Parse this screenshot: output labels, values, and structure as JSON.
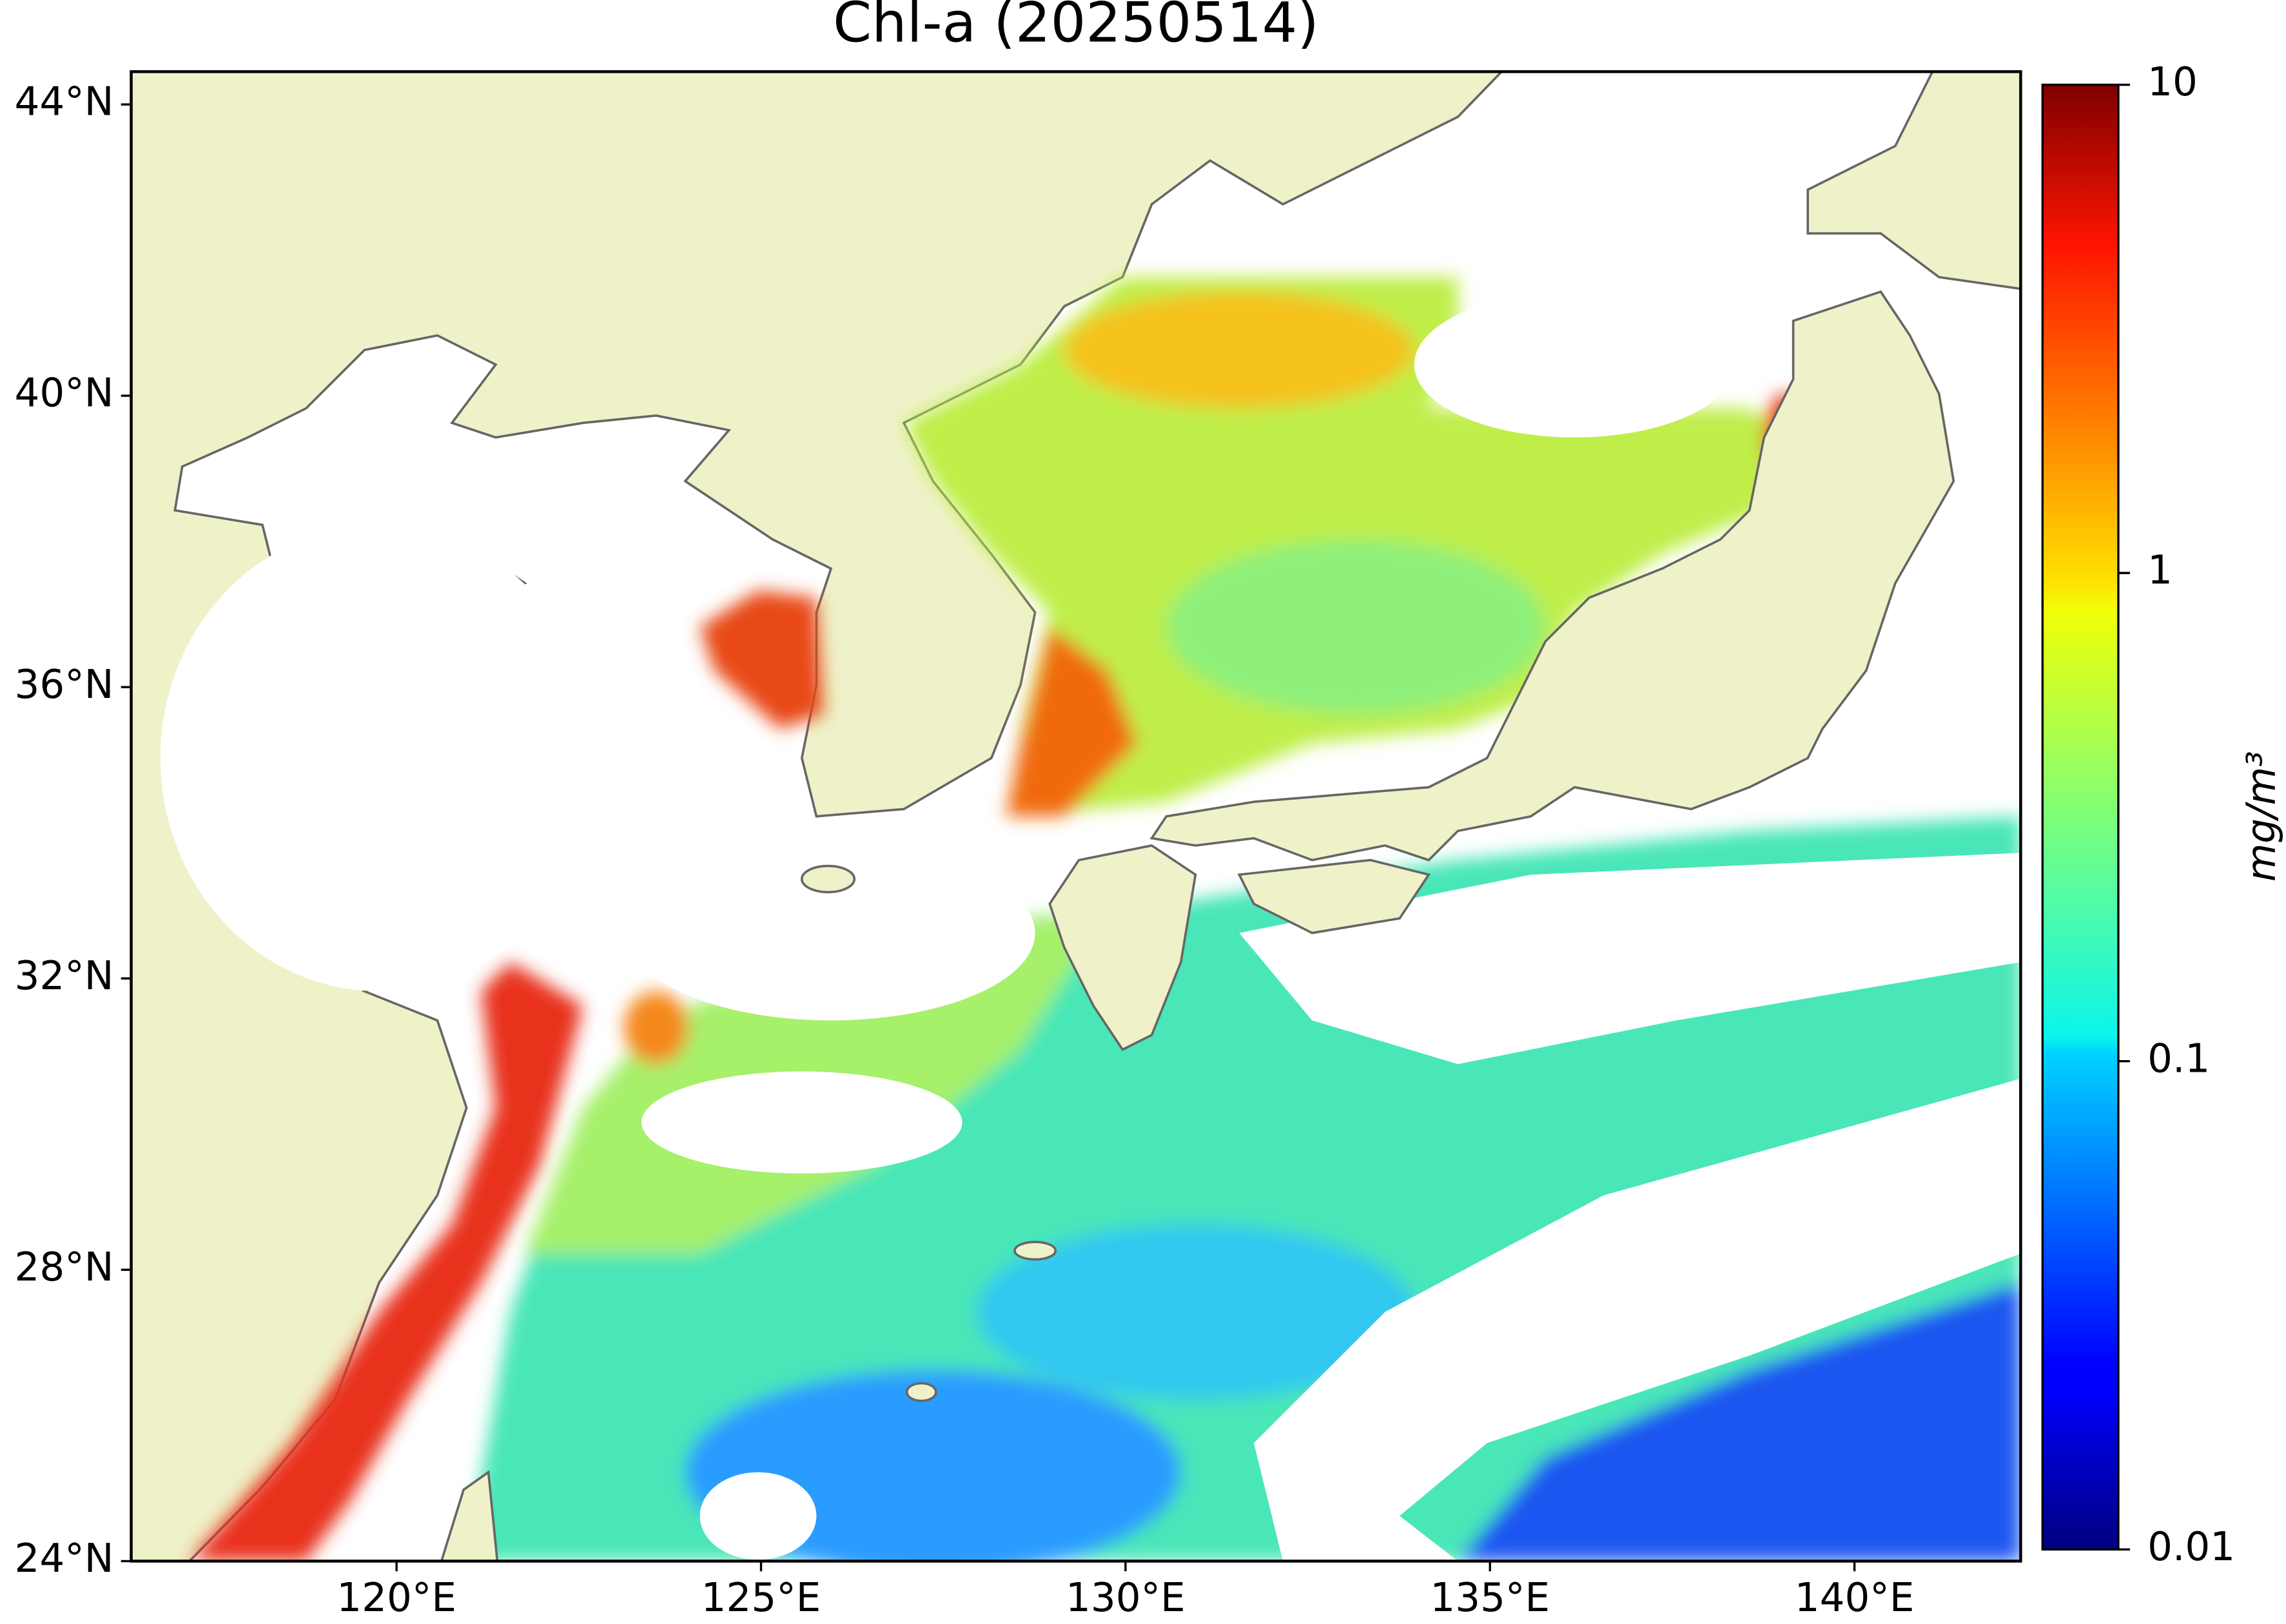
{
  "chart_data": {
    "type": "map",
    "title": "Chl-a (20250514)",
    "lonlim": [
      116.36,
      142.28
    ],
    "latlim": [
      24,
      44.45
    ],
    "xticks": [
      {
        "value": 120,
        "label": "120°E"
      },
      {
        "value": 125,
        "label": "125°E"
      },
      {
        "value": 130,
        "label": "130°E"
      },
      {
        "value": 135,
        "label": "135°E"
      },
      {
        "value": 140,
        "label": "140°E"
      }
    ],
    "yticks": [
      {
        "value": 24,
        "label": "24°N"
      },
      {
        "value": 28,
        "label": "28°N"
      },
      {
        "value": 32,
        "label": "32°N"
      },
      {
        "value": 36,
        "label": "36°N"
      },
      {
        "value": 40,
        "label": "40°N"
      },
      {
        "value": 44,
        "label": "44°N"
      }
    ],
    "colorbar": {
      "label": "mg/m³",
      "scale": "log",
      "colormap": "jet",
      "range": [
        0.01,
        10
      ],
      "ticks": [
        0.01,
        0.1,
        1,
        10
      ]
    }
  }
}
